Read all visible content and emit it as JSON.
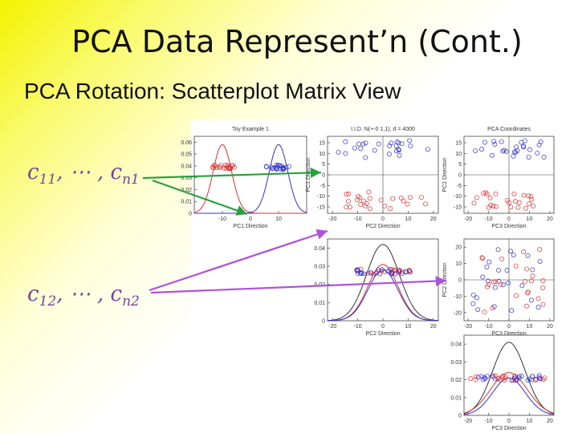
{
  "slide": {
    "title": "PCA Data Represent’n (Cont.)",
    "subtitle": "PCA Rotation:  Scatterplot Matrix View",
    "label_first": {
      "prefix": "c",
      "first_sub": "11",
      "dots": ", ⋯ , ",
      "second": "c",
      "second_sub": "n1"
    },
    "label_second": {
      "prefix": "c",
      "first_sub": "12",
      "dots": ", ⋯ , ",
      "second": "c",
      "second_sub": "n2"
    }
  },
  "colors": {
    "red": "#e03030",
    "blue": "#3030d0",
    "black": "#333333",
    "green_arrow": "#2aa040",
    "purple_arrow": "#b050d8"
  },
  "chart_data": [
    {
      "id": "p11",
      "type": "line",
      "title": "Toy Example 1",
      "xlabel": "PC1 Direction",
      "ylabel": "",
      "xlim": [
        -20,
        20
      ],
      "ylim": [
        0,
        0.065
      ],
      "yticks": [
        "0",
        "0.01",
        "0.02",
        "0.03",
        "0.04",
        "0.05",
        "0.06"
      ],
      "xticks": [
        "-10",
        "0",
        "10"
      ],
      "series": [
        {
          "color": "red",
          "type": "gaussian",
          "mu": -10,
          "sigma": 3.3,
          "amp": 0.058
        },
        {
          "color": "blue",
          "type": "gaussian",
          "mu": 10,
          "sigma": 3.3,
          "amp": 0.058
        }
      ],
      "scatter": {
        "red_center": -10,
        "blue_center": 10,
        "y": 0.039
      }
    },
    {
      "id": "p12",
      "type": "scatter",
      "title": "I.I.D. N(+-0 1,1), d = 4000",
      "xlabel": "PC2 Direction",
      "ylabel": "PC1 Direction",
      "xlim": [
        -22,
        22
      ],
      "ylim": [
        -18,
        18
      ],
      "xticks": [
        "-20",
        "-10",
        "0",
        "10",
        "20"
      ],
      "yticks": [
        "-15",
        "-10",
        "-5",
        "0",
        "5",
        "10",
        "15"
      ]
    },
    {
      "id": "p13",
      "type": "scatter",
      "title": "PCA Coordinates",
      "xlabel": "PC3 Direction",
      "ylabel": "PC1 Direction",
      "xlim": [
        -22,
        22
      ],
      "ylim": [
        -18,
        18
      ],
      "xticks": [
        "-20",
        "-10",
        "0",
        "10",
        "20"
      ],
      "yticks": [
        "-15",
        "-10",
        "-5",
        "0",
        "5",
        "10",
        "15"
      ]
    },
    {
      "id": "p22",
      "type": "line",
      "title": "",
      "xlabel": "PC2 Direction",
      "ylabel": "",
      "xlim": [
        -22,
        22
      ],
      "ylim": [
        0,
        0.045
      ],
      "xticks": [
        "-20",
        "-10",
        "0",
        "10",
        "20"
      ],
      "yticks": [
        "0",
        "0.01",
        "0.02",
        "0.03",
        "0.04"
      ],
      "series": [
        {
          "color": "black",
          "type": "gaussian",
          "mu": 0,
          "sigma": 6.5,
          "amp": 0.042
        },
        {
          "color": "red",
          "type": "gaussian",
          "mu": 0,
          "sigma": 6,
          "amp": 0.031
        },
        {
          "color": "blue",
          "type": "gaussian",
          "mu": 0,
          "sigma": 6,
          "amp": 0.028
        }
      ],
      "scatter": {
        "y": 0.027
      }
    },
    {
      "id": "p23",
      "type": "scatter",
      "title": "",
      "xlabel": "PC3 Direction",
      "ylabel": "PC2 Direction",
      "xlim": [
        -22,
        22
      ],
      "ylim": [
        -25,
        25
      ],
      "xticks": [
        "-20",
        "-10",
        "0",
        "10",
        "20"
      ],
      "yticks": [
        "-20",
        "-10",
        "0",
        "10",
        "20"
      ]
    },
    {
      "id": "p33",
      "type": "line",
      "title": "",
      "xlabel": "PC3 Direction",
      "ylabel": "",
      "xlim": [
        -22,
        22
      ],
      "ylim": [
        0,
        0.045
      ],
      "xticks": [
        "-20",
        "-10",
        "0",
        "10",
        "20"
      ],
      "yticks": [
        "0",
        "0.01",
        "0.02",
        "0.03",
        "0.04"
      ],
      "series": [
        {
          "color": "black",
          "type": "gaussian",
          "mu": 0,
          "sigma": 8,
          "amp": 0.041
        },
        {
          "color": "red",
          "type": "gaussian",
          "mu": 0,
          "sigma": 9,
          "amp": 0.024
        },
        {
          "color": "blue",
          "type": "gaussian",
          "mu": 0,
          "sigma": 8,
          "amp": 0.021
        }
      ],
      "scatter": {
        "y": 0.021
      }
    }
  ]
}
